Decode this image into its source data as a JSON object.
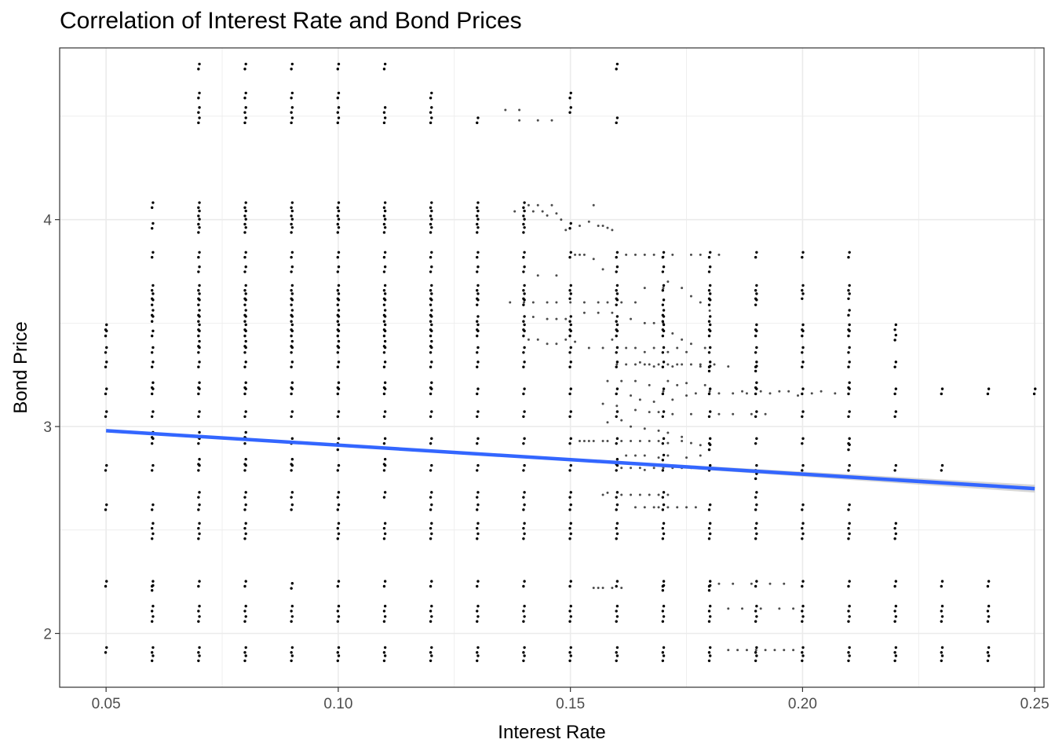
{
  "chart_data": {
    "type": "scatter",
    "title": "Correlation of Interest Rate and Bond Prices",
    "xlabel": "Interest Rate",
    "ylabel": "Bond Price",
    "xlim": [
      0.04,
      0.252
    ],
    "ylim": [
      1.74,
      4.83
    ],
    "x_ticks": [
      0.05,
      0.1,
      0.15,
      0.2,
      0.25
    ],
    "x_tick_labels": [
      "0.05",
      "0.10",
      "0.15",
      "0.20",
      "0.25"
    ],
    "y_ticks": [
      2,
      3,
      4
    ],
    "y_tick_labels": [
      "2",
      "3",
      "4"
    ],
    "grid": true,
    "theme": "bw",
    "colors": {
      "points": "#000000",
      "trend_line": "#3366FF",
      "confidence_band": "#BDBDBD",
      "grid": "#EBEBEB",
      "panel_border": "#333333"
    },
    "trend_line": {
      "method": "linear",
      "x": [
        0.05,
        0.25
      ],
      "y": [
        2.98,
        2.7
      ]
    },
    "series": [
      {
        "x": 0.05,
        "y": [
          1.92,
          2.24,
          2.61,
          2.8,
          3.06,
          3.17,
          3.3,
          3.37,
          3.45,
          3.48
        ]
      },
      {
        "x": 0.06,
        "y": [
          1.88,
          1.92,
          2.07,
          2.12,
          2.22,
          2.24,
          2.47,
          2.52,
          2.61,
          2.8,
          2.93,
          2.96,
          3.06,
          3.17,
          3.2,
          3.3,
          3.37,
          3.45,
          3.52,
          3.55,
          3.6,
          3.63,
          3.67,
          3.83,
          3.97,
          4.07
        ]
      },
      {
        "x": 0.07,
        "y": [
          1.88,
          1.92,
          2.07,
          2.12,
          2.24,
          2.47,
          2.52,
          2.61,
          2.67,
          2.8,
          2.83,
          2.93,
          2.96,
          3.06,
          3.17,
          3.2,
          3.3,
          3.37,
          3.4,
          3.45,
          3.48,
          3.52,
          3.55,
          3.6,
          3.63,
          3.67,
          3.76,
          3.83,
          3.95,
          3.99,
          4.03,
          4.07,
          4.48,
          4.53,
          4.6,
          4.74
        ]
      },
      {
        "x": 0.08,
        "y": [
          1.88,
          1.92,
          2.07,
          2.12,
          2.24,
          2.47,
          2.52,
          2.61,
          2.67,
          2.8,
          2.83,
          2.93,
          2.96,
          3.06,
          3.17,
          3.2,
          3.3,
          3.37,
          3.4,
          3.45,
          3.48,
          3.52,
          3.55,
          3.6,
          3.63,
          3.67,
          3.76,
          3.83,
          3.95,
          3.99,
          4.03,
          4.07,
          4.48,
          4.53,
          4.6,
          4.74
        ]
      },
      {
        "x": 0.09,
        "y": [
          1.88,
          1.92,
          2.07,
          2.12,
          2.23,
          2.61,
          2.67,
          2.8,
          2.83,
          2.93,
          3.06,
          3.17,
          3.2,
          3.3,
          3.37,
          3.4,
          3.45,
          3.48,
          3.52,
          3.55,
          3.6,
          3.63,
          3.67,
          3.76,
          3.83,
          3.95,
          3.99,
          4.03,
          4.07,
          4.48,
          4.53,
          4.6,
          4.74
        ]
      },
      {
        "x": 0.1,
        "y": [
          1.88,
          1.92,
          2.07,
          2.12,
          2.24,
          2.47,
          2.52,
          2.61,
          2.67,
          2.8,
          2.9,
          2.93,
          3.06,
          3.17,
          3.2,
          3.3,
          3.37,
          3.4,
          3.45,
          3.48,
          3.52,
          3.55,
          3.6,
          3.63,
          3.67,
          3.76,
          3.83,
          3.95,
          3.99,
          4.03,
          4.07,
          4.48,
          4.53,
          4.6,
          4.74
        ]
      },
      {
        "x": 0.11,
        "y": [
          1.88,
          1.92,
          2.07,
          2.12,
          2.24,
          2.47,
          2.52,
          2.67,
          2.8,
          2.83,
          2.93,
          3.06,
          3.17,
          3.2,
          3.3,
          3.37,
          3.4,
          3.45,
          3.48,
          3.52,
          3.55,
          3.6,
          3.63,
          3.67,
          3.76,
          3.83,
          3.95,
          3.99,
          4.03,
          4.07,
          4.48,
          4.53,
          4.74
        ]
      },
      {
        "x": 0.12,
        "y": [
          1.88,
          1.92,
          2.07,
          2.12,
          2.24,
          2.47,
          2.52,
          2.61,
          2.67,
          2.8,
          2.93,
          3.06,
          3.17,
          3.2,
          3.3,
          3.37,
          3.4,
          3.45,
          3.48,
          3.52,
          3.55,
          3.6,
          3.63,
          3.67,
          3.76,
          3.83,
          3.95,
          3.99,
          4.03,
          4.07,
          4.48,
          4.53,
          4.6
        ]
      },
      {
        "x": 0.13,
        "y": [
          1.88,
          1.92,
          2.07,
          2.12,
          2.24,
          2.47,
          2.52,
          2.61,
          2.67,
          2.8,
          2.93,
          3.06,
          3.17,
          3.3,
          3.37,
          3.45,
          3.48,
          3.52,
          3.6,
          3.63,
          3.67,
          3.76,
          3.83,
          3.95,
          3.99,
          4.03,
          4.07,
          4.48
        ]
      },
      {
        "x": 0.14,
        "y": [
          1.88,
          1.92,
          2.07,
          2.12,
          2.24,
          2.47,
          2.52,
          2.61,
          2.67,
          2.8,
          2.93,
          3.06,
          3.17,
          3.3,
          3.37,
          3.45,
          3.48,
          3.52,
          3.6,
          3.63,
          3.67,
          3.76,
          3.83,
          3.95,
          3.99,
          4.03,
          4.07
        ]
      },
      {
        "x": 0.15,
        "y": [
          1.88,
          1.92,
          2.07,
          2.12,
          2.24,
          2.47,
          2.52,
          2.61,
          2.67,
          2.8,
          2.93,
          3.06,
          3.17,
          3.3,
          3.37,
          3.45,
          3.48,
          3.52,
          3.63,
          3.67,
          3.83,
          3.97,
          4.53,
          4.6
        ]
      },
      {
        "x": 0.16,
        "y": [
          1.88,
          1.92,
          2.07,
          2.12,
          2.24,
          2.47,
          2.52,
          2.61,
          2.67,
          2.8,
          2.83,
          2.93,
          3.06,
          3.17,
          3.3,
          3.37,
          3.45,
          3.48,
          3.52,
          3.6,
          3.63,
          3.67,
          3.76,
          3.83,
          4.48,
          4.74
        ]
      },
      {
        "x": 0.17,
        "y": [
          1.88,
          1.92,
          2.07,
          2.12,
          2.22,
          2.24,
          2.47,
          2.52,
          2.61,
          2.67,
          2.8,
          2.85,
          2.93,
          3.06,
          3.17,
          3.3,
          3.37,
          3.45,
          3.48,
          3.52,
          3.55,
          3.6,
          3.67,
          3.76,
          3.83
        ]
      },
      {
        "x": 0.18,
        "y": [
          1.88,
          1.92,
          2.07,
          2.12,
          2.22,
          2.24,
          2.47,
          2.52,
          2.61,
          2.8,
          2.9,
          2.93,
          3.06,
          3.17,
          3.28,
          3.3,
          3.37,
          3.45,
          3.48,
          3.52,
          3.6,
          3.63,
          3.67,
          3.76,
          3.83
        ]
      },
      {
        "x": 0.19,
        "y": [
          1.88,
          1.92,
          2.07,
          2.12,
          2.24,
          2.47,
          2.52,
          2.61,
          2.67,
          2.76,
          2.8,
          2.93,
          3.06,
          3.17,
          3.2,
          3.28,
          3.3,
          3.37,
          3.45,
          3.48,
          3.6,
          3.63,
          3.67,
          3.83
        ]
      },
      {
        "x": 0.2,
        "y": [
          1.88,
          1.92,
          2.07,
          2.12,
          2.24,
          2.47,
          2.52,
          2.61,
          2.8,
          2.93,
          3.06,
          3.17,
          3.3,
          3.37,
          3.45,
          3.48,
          3.63,
          3.67,
          3.83
        ]
      },
      {
        "x": 0.21,
        "y": [
          1.88,
          1.92,
          2.07,
          2.12,
          2.24,
          2.47,
          2.52,
          2.61,
          2.8,
          2.9,
          2.93,
          3.06,
          3.17,
          3.2,
          3.3,
          3.37,
          3.45,
          3.48,
          3.55,
          3.63,
          3.67,
          3.83
        ]
      },
      {
        "x": 0.22,
        "y": [
          1.88,
          1.92,
          2.07,
          2.12,
          2.24,
          2.47,
          2.52,
          2.8,
          3.06,
          3.17,
          3.3,
          3.43,
          3.48
        ]
      },
      {
        "x": 0.23,
        "y": [
          1.88,
          1.92,
          2.07,
          2.12,
          2.24,
          2.8,
          3.17
        ]
      },
      {
        "x": 0.24,
        "y": [
          1.88,
          1.92,
          2.07,
          2.12,
          2.24,
          3.17
        ]
      },
      {
        "x": 0.25,
        "y": [
          3.17
        ]
      }
    ],
    "jitter_points": [
      [
        0.136,
        4.53
      ],
      [
        0.139,
        4.53
      ],
      [
        0.139,
        4.48
      ],
      [
        0.143,
        4.48
      ],
      [
        0.146,
        4.48
      ],
      [
        0.138,
        4.04
      ],
      [
        0.141,
        4.07
      ],
      [
        0.142,
        4.04
      ],
      [
        0.143,
        4.07
      ],
      [
        0.144,
        4.04
      ],
      [
        0.145,
        4.02
      ],
      [
        0.146,
        4.07
      ],
      [
        0.147,
        4.03
      ],
      [
        0.148,
        4.0
      ],
      [
        0.149,
        3.95
      ],
      [
        0.152,
        3.97
      ],
      [
        0.154,
        3.99
      ],
      [
        0.155,
        4.07
      ],
      [
        0.156,
        3.97
      ],
      [
        0.157,
        3.97
      ],
      [
        0.158,
        3.96
      ],
      [
        0.159,
        3.95
      ],
      [
        0.143,
        3.73
      ],
      [
        0.147,
        3.73
      ],
      [
        0.151,
        3.83
      ],
      [
        0.152,
        3.83
      ],
      [
        0.153,
        3.83
      ],
      [
        0.155,
        3.81
      ],
      [
        0.157,
        3.76
      ],
      [
        0.162,
        3.83
      ],
      [
        0.164,
        3.83
      ],
      [
        0.166,
        3.83
      ],
      [
        0.168,
        3.83
      ],
      [
        0.17,
        3.82
      ],
      [
        0.172,
        3.83
      ],
      [
        0.176,
        3.83
      ],
      [
        0.178,
        3.83
      ],
      [
        0.182,
        3.83
      ],
      [
        0.137,
        3.6
      ],
      [
        0.14,
        3.6
      ],
      [
        0.142,
        3.6
      ],
      [
        0.145,
        3.6
      ],
      [
        0.147,
        3.6
      ],
      [
        0.15,
        3.6
      ],
      [
        0.153,
        3.6
      ],
      [
        0.156,
        3.6
      ],
      [
        0.158,
        3.6
      ],
      [
        0.161,
        3.6
      ],
      [
        0.164,
        3.6
      ],
      [
        0.166,
        3.67
      ],
      [
        0.17,
        3.67
      ],
      [
        0.171,
        3.7
      ],
      [
        0.174,
        3.67
      ],
      [
        0.176,
        3.63
      ],
      [
        0.178,
        3.6
      ],
      [
        0.18,
        3.56
      ],
      [
        0.142,
        3.53
      ],
      [
        0.145,
        3.52
      ],
      [
        0.147,
        3.52
      ],
      [
        0.149,
        3.52
      ],
      [
        0.153,
        3.55
      ],
      [
        0.156,
        3.55
      ],
      [
        0.159,
        3.55
      ],
      [
        0.163,
        3.52
      ],
      [
        0.166,
        3.5
      ],
      [
        0.168,
        3.5
      ],
      [
        0.17,
        3.5
      ],
      [
        0.172,
        3.45
      ],
      [
        0.174,
        3.42
      ],
      [
        0.176,
        3.4
      ],
      [
        0.179,
        3.38
      ],
      [
        0.141,
        3.42
      ],
      [
        0.143,
        3.42
      ],
      [
        0.145,
        3.4
      ],
      [
        0.147,
        3.4
      ],
      [
        0.149,
        3.42
      ],
      [
        0.151,
        3.41
      ],
      [
        0.154,
        3.38
      ],
      [
        0.157,
        3.38
      ],
      [
        0.159,
        3.42
      ],
      [
        0.162,
        3.38
      ],
      [
        0.164,
        3.38
      ],
      [
        0.166,
        3.36
      ],
      [
        0.168,
        3.38
      ],
      [
        0.171,
        3.36
      ],
      [
        0.173,
        3.38
      ],
      [
        0.175,
        3.36
      ],
      [
        0.178,
        3.3
      ],
      [
        0.16,
        3.3
      ],
      [
        0.162,
        3.3
      ],
      [
        0.164,
        3.3
      ],
      [
        0.165,
        3.31
      ],
      [
        0.166,
        3.3
      ],
      [
        0.167,
        3.3
      ],
      [
        0.168,
        3.29
      ],
      [
        0.169,
        3.3
      ],
      [
        0.171,
        3.3
      ],
      [
        0.172,
        3.29
      ],
      [
        0.173,
        3.3
      ],
      [
        0.174,
        3.3
      ],
      [
        0.176,
        3.3
      ],
      [
        0.178,
        3.29
      ],
      [
        0.181,
        3.3
      ],
      [
        0.184,
        3.29
      ],
      [
        0.158,
        3.22
      ],
      [
        0.161,
        3.22
      ],
      [
        0.164,
        3.22
      ],
      [
        0.167,
        3.2
      ],
      [
        0.171,
        3.22
      ],
      [
        0.173,
        3.2
      ],
      [
        0.175,
        3.21
      ],
      [
        0.179,
        3.2
      ],
      [
        0.163,
        3.15
      ],
      [
        0.165,
        3.13
      ],
      [
        0.168,
        3.12
      ],
      [
        0.17,
        3.17
      ],
      [
        0.172,
        3.13
      ],
      [
        0.175,
        3.15
      ],
      [
        0.177,
        3.16
      ],
      [
        0.18,
        3.17
      ],
      [
        0.182,
        3.16
      ],
      [
        0.185,
        3.16
      ],
      [
        0.187,
        3.17
      ],
      [
        0.188,
        3.16
      ],
      [
        0.191,
        3.17
      ],
      [
        0.193,
        3.16
      ],
      [
        0.195,
        3.17
      ],
      [
        0.197,
        3.17
      ],
      [
        0.199,
        3.15
      ],
      [
        0.202,
        3.16
      ],
      [
        0.204,
        3.17
      ],
      [
        0.207,
        3.16
      ],
      [
        0.157,
        3.11
      ],
      [
        0.16,
        3.1
      ],
      [
        0.164,
        3.08
      ],
      [
        0.167,
        3.07
      ],
      [
        0.169,
        3.07
      ],
      [
        0.172,
        3.06
      ],
      [
        0.176,
        3.06
      ],
      [
        0.182,
        3.06
      ],
      [
        0.185,
        3.06
      ],
      [
        0.189,
        3.06
      ],
      [
        0.192,
        3.06
      ],
      [
        0.158,
        3.02
      ],
      [
        0.161,
        3.03
      ],
      [
        0.163,
        3.0
      ],
      [
        0.166,
        2.99
      ],
      [
        0.169,
        2.98
      ],
      [
        0.171,
        2.97
      ],
      [
        0.174,
        2.95
      ],
      [
        0.152,
        2.93
      ],
      [
        0.153,
        2.93
      ],
      [
        0.154,
        2.93
      ],
      [
        0.155,
        2.93
      ],
      [
        0.157,
        2.93
      ],
      [
        0.158,
        2.93
      ],
      [
        0.161,
        2.93
      ],
      [
        0.163,
        2.93
      ],
      [
        0.165,
        2.93
      ],
      [
        0.167,
        2.93
      ],
      [
        0.169,
        2.93
      ],
      [
        0.171,
        2.92
      ],
      [
        0.174,
        2.93
      ],
      [
        0.176,
        2.92
      ],
      [
        0.178,
        2.91
      ],
      [
        0.162,
        2.86
      ],
      [
        0.164,
        2.86
      ],
      [
        0.166,
        2.86
      ],
      [
        0.169,
        2.85
      ],
      [
        0.171,
        2.86
      ],
      [
        0.175,
        2.85
      ],
      [
        0.178,
        2.86
      ],
      [
        0.161,
        2.8
      ],
      [
        0.163,
        2.8
      ],
      [
        0.165,
        2.8
      ],
      [
        0.166,
        2.79
      ],
      [
        0.168,
        2.8
      ],
      [
        0.17,
        2.8
      ],
      [
        0.172,
        2.8
      ],
      [
        0.174,
        2.8
      ],
      [
        0.176,
        2.8
      ],
      [
        0.157,
        2.67
      ],
      [
        0.158,
        2.68
      ],
      [
        0.161,
        2.67
      ],
      [
        0.163,
        2.67
      ],
      [
        0.165,
        2.67
      ],
      [
        0.167,
        2.67
      ],
      [
        0.169,
        2.67
      ],
      [
        0.171,
        2.67
      ],
      [
        0.164,
        2.61
      ],
      [
        0.166,
        2.61
      ],
      [
        0.168,
        2.61
      ],
      [
        0.169,
        2.61
      ],
      [
        0.171,
        2.61
      ],
      [
        0.173,
        2.61
      ],
      [
        0.175,
        2.61
      ],
      [
        0.177,
        2.61
      ],
      [
        0.155,
        2.22
      ],
      [
        0.156,
        2.22
      ],
      [
        0.157,
        2.22
      ],
      [
        0.159,
        2.22
      ],
      [
        0.161,
        2.22
      ],
      [
        0.182,
        2.24
      ],
      [
        0.185,
        2.24
      ],
      [
        0.189,
        2.24
      ],
      [
        0.193,
        2.24
      ],
      [
        0.196,
        2.24
      ],
      [
        0.184,
        2.12
      ],
      [
        0.187,
        2.12
      ],
      [
        0.191,
        2.12
      ],
      [
        0.195,
        2.12
      ],
      [
        0.198,
        2.12
      ],
      [
        0.184,
        1.92
      ],
      [
        0.186,
        1.92
      ],
      [
        0.188,
        1.92
      ],
      [
        0.19,
        1.92
      ],
      [
        0.192,
        1.92
      ],
      [
        0.194,
        1.92
      ],
      [
        0.196,
        1.92
      ],
      [
        0.198,
        1.92
      ]
    ]
  }
}
